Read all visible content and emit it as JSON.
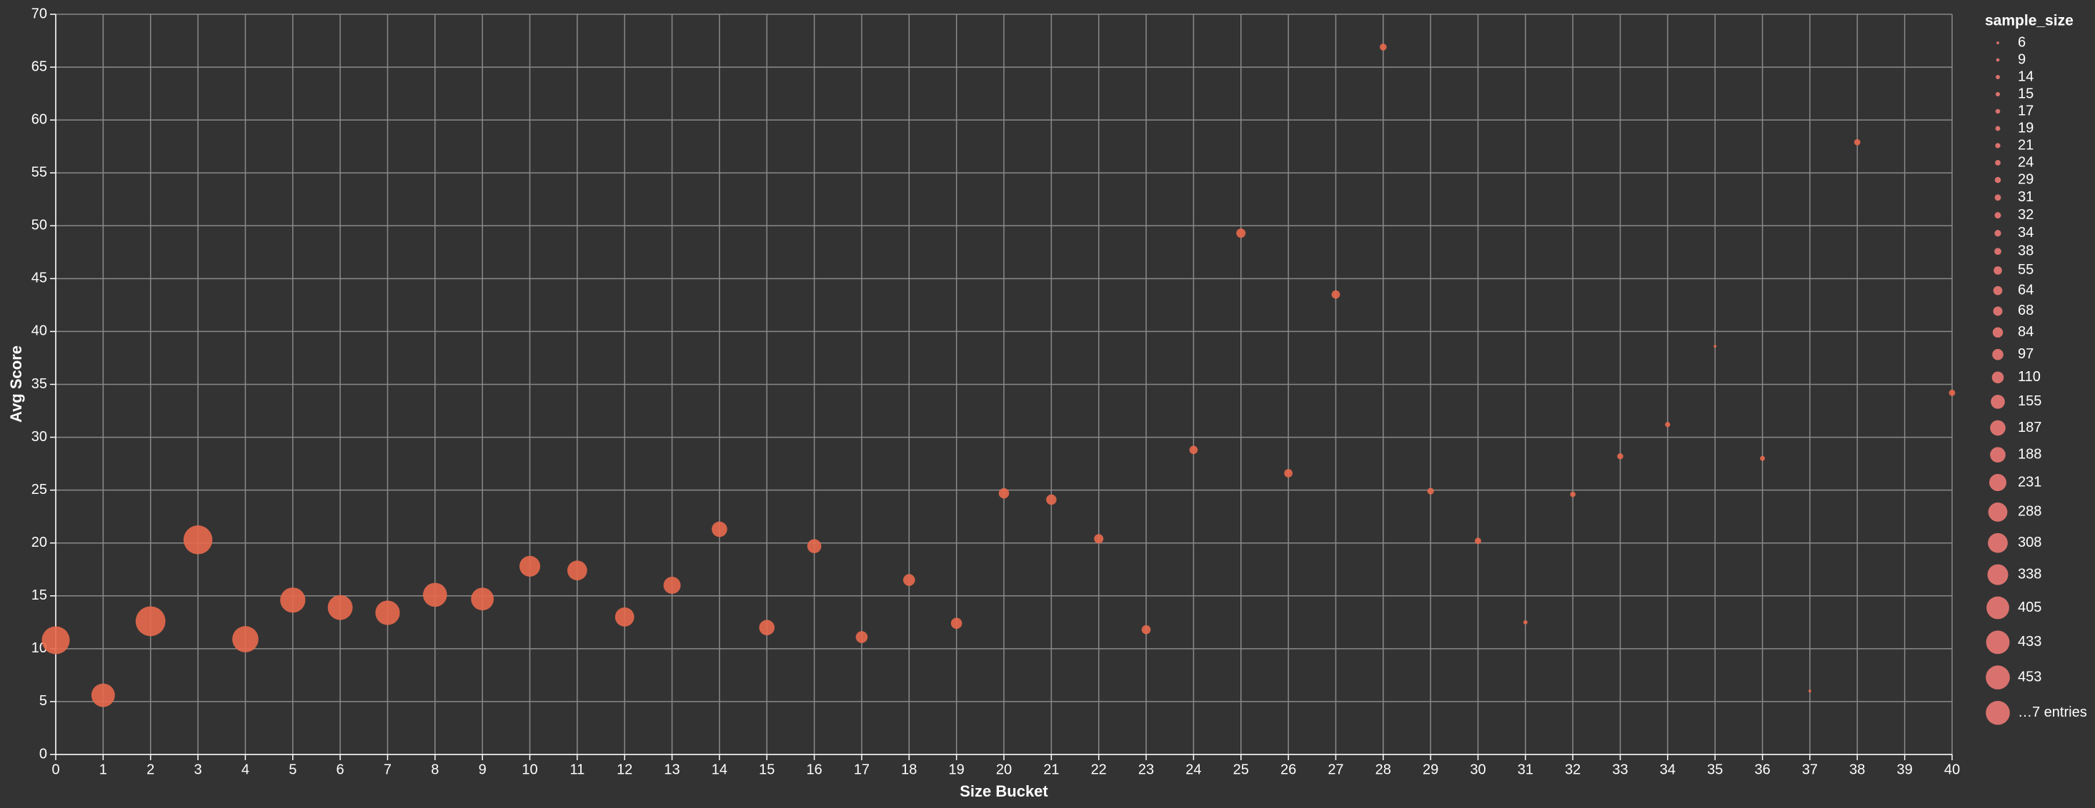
{
  "chart_data": {
    "type": "bubble",
    "x_label": "Size Bucket",
    "y_label": "Avg Score",
    "x": [
      0,
      1,
      2,
      3,
      4,
      5,
      6,
      7,
      8,
      9,
      10,
      11,
      12,
      13,
      14,
      15,
      16,
      17,
      18,
      19,
      20,
      21,
      22,
      23,
      24,
      25,
      26,
      27,
      28,
      29,
      30,
      31,
      32,
      33,
      34,
      35,
      36,
      37,
      38,
      40
    ],
    "values": [
      10.8,
      5.6,
      12.6,
      20.3,
      10.9,
      14.6,
      13.9,
      13.4,
      15.1,
      14.7,
      17.8,
      17.4,
      13.0,
      16.0,
      21.3,
      12.0,
      19.7,
      11.1,
      16.5,
      12.4,
      24.7,
      24.1,
      20.4,
      11.8,
      28.8,
      49.3,
      26.6,
      43.5,
      66.9,
      24.9,
      20.2,
      12.5,
      24.6,
      28.2,
      31.2,
      38.6,
      28.0,
      6.0,
      57.9,
      34.2
    ],
    "sizes": [
      612,
      433,
      700,
      655,
      540,
      498,
      487,
      470,
      453,
      405,
      338,
      308,
      288,
      231,
      188,
      187,
      155,
      110,
      110,
      97,
      84,
      84,
      68,
      64,
      55,
      68,
      55,
      55,
      38,
      34,
      32,
      14,
      24,
      29,
      21,
      6,
      19,
      6,
      31,
      32
    ],
    "color": "#e8694d",
    "xlim": [
      0,
      40
    ],
    "xticks": [
      0,
      1,
      2,
      3,
      4,
      5,
      6,
      7,
      8,
      9,
      10,
      11,
      12,
      13,
      14,
      15,
      16,
      17,
      18,
      19,
      20,
      21,
      22,
      23,
      24,
      25,
      26,
      27,
      28,
      29,
      30,
      31,
      32,
      33,
      34,
      35,
      36,
      37,
      38,
      39,
      40
    ],
    "ylim": [
      0,
      70
    ],
    "yticks": [
      0,
      5,
      10,
      15,
      20,
      25,
      30,
      35,
      40,
      45,
      50,
      55,
      60,
      65,
      70
    ],
    "grid": true,
    "size_legend": {
      "title": "sample_size",
      "color": "#d9726e",
      "values": [
        6,
        9,
        14,
        15,
        17,
        19,
        21,
        24,
        29,
        31,
        32,
        34,
        38,
        55,
        64,
        68,
        84,
        97,
        110,
        155,
        187,
        188,
        231,
        288,
        308,
        338,
        405,
        433,
        453
      ],
      "more": "…7 entries"
    }
  }
}
